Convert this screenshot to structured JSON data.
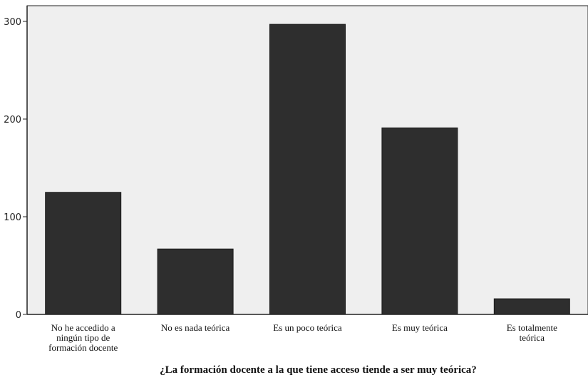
{
  "chart_data": {
    "type": "bar",
    "title": "",
    "xlabel": "¿La formación docente a la que tiene acceso tiende a ser muy teórica?",
    "ylabel": "",
    "categories": [
      "No he accedido a ningún tipo de formación docente",
      "No es nada teórica",
      "Es un poco teórica",
      "Es muy teórica",
      "Es totalmente teórica"
    ],
    "category_lines": [
      [
        "No he accedido a",
        "ningún tipo de",
        "formación docente"
      ],
      [
        "No es nada teórica"
      ],
      [
        "Es un poco teórica"
      ],
      [
        "Es muy teórica"
      ],
      [
        "Es totalmente",
        "teórica"
      ]
    ],
    "values": [
      125,
      67,
      297,
      191,
      16
    ],
    "ylim": [
      0,
      300
    ],
    "yticks": [
      "0",
      "100",
      "200",
      "300"
    ],
    "grid": false,
    "colors": {
      "bar": "#2e2e2e",
      "plot_bg": "#efefef",
      "axis": "#222222"
    }
  }
}
